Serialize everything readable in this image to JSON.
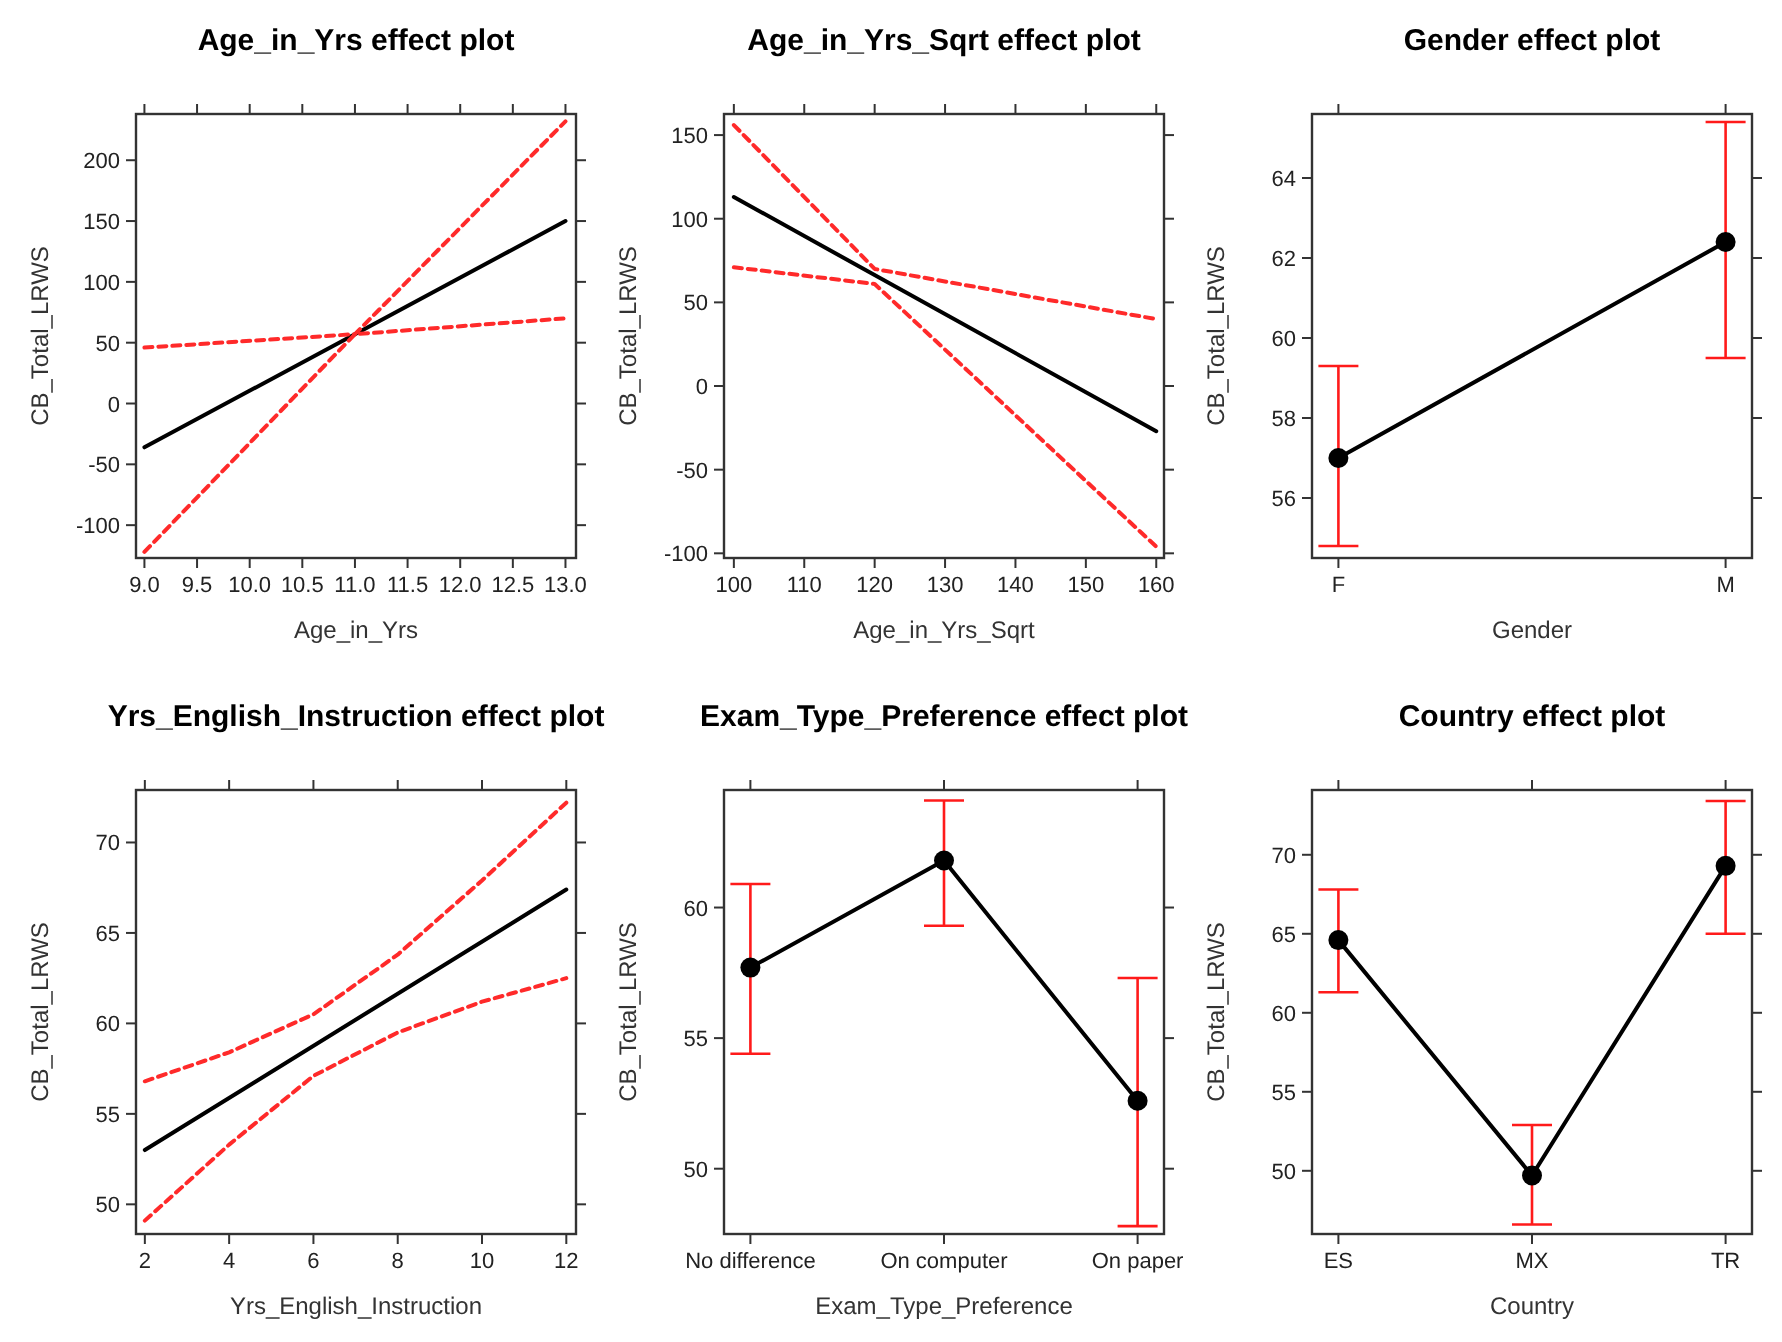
{
  "chart_data": [
    {
      "type": "line",
      "title": "Age_in_Yrs effect plot",
      "xlabel": "Age_in_Yrs",
      "ylabel": "CB_Total_LRWS",
      "xlim": [
        8.92,
        13.1
      ],
      "xticks": [
        {
          "value": 9,
          "label": "9.0"
        },
        9.5,
        {
          "value": 10,
          "label": "10.0"
        },
        10.5,
        {
          "value": 11,
          "label": "11.0"
        },
        11.5,
        {
          "value": 12,
          "label": "12.0"
        },
        12.5,
        {
          "value": 13,
          "label": "13.0"
        }
      ],
      "ylim": [
        -127,
        238
      ],
      "yticks": [
        -100,
        -50,
        0,
        50,
        100,
        150,
        200
      ],
      "grid": false,
      "series": [
        {
          "color": "#000000",
          "line_style": "solid",
          "x": [
            9,
            13
          ],
          "values": [
            -36,
            150
          ]
        },
        {
          "color": "#ff2a2a",
          "line_style": "dashed",
          "x": [
            9,
            11,
            13
          ],
          "values": [
            -122,
            57,
            70
          ]
        },
        {
          "color": "#ff2a2a",
          "line_style": "dashed",
          "x": [
            9,
            11,
            13
          ],
          "values": [
            46,
            57,
            232
          ]
        }
      ]
    },
    {
      "type": "line",
      "title": "Age_in_Yrs_Sqrt effect plot",
      "xlabel": "Age_in_Yrs_Sqrt",
      "ylabel": "CB_Total_LRWS",
      "xlim": [
        98.6,
        161.1
      ],
      "xticks": [
        100,
        110,
        120,
        130,
        140,
        150,
        160
      ],
      "ylim": [
        -102.8,
        162.6
      ],
      "yticks": [
        -100,
        -50,
        0,
        50,
        100,
        150
      ],
      "grid": false,
      "series": [
        {
          "color": "#000000",
          "line_style": "solid",
          "x": [
            100,
            160
          ],
          "values": [
            113,
            -27
          ]
        },
        {
          "color": "#ff2a2a",
          "line_style": "dashed",
          "x": [
            100,
            120,
            160
          ],
          "values": [
            71,
            61,
            -96
          ]
        },
        {
          "color": "#ff2a2a",
          "line_style": "dashed",
          "x": [
            100,
            120,
            160
          ],
          "values": [
            156,
            70,
            40
          ]
        }
      ]
    },
    {
      "type": "line",
      "title": "Gender effect plot",
      "xlabel": "Gender",
      "ylabel": "CB_Total_LRWS",
      "categories": [
        "F",
        "M"
      ],
      "ylim": [
        54.5,
        65.6
      ],
      "yticks": [
        56,
        58,
        60,
        62,
        64
      ],
      "grid": false,
      "marker": "circle",
      "series": [
        {
          "color": "#000000",
          "line_style": "solid",
          "values": [
            57.0,
            62.4
          ],
          "errors": [
            [
              54.8,
              59.3
            ],
            [
              59.5,
              65.4
            ]
          ]
        }
      ]
    },
    {
      "type": "line",
      "title": "Yrs_English_Instruction effect plot",
      "xlabel": "Yrs_English_Instruction",
      "ylabel": "CB_Total_LRWS",
      "xlim": [
        1.79,
        12.23
      ],
      "xticks": [
        2,
        4,
        6,
        8,
        10,
        12
      ],
      "ylim": [
        48.36,
        72.9
      ],
      "yticks": [
        50,
        55,
        60,
        65,
        70
      ],
      "grid": false,
      "series": [
        {
          "color": "#000000",
          "line_style": "solid",
          "x": [
            2,
            12
          ],
          "values": [
            53.0,
            67.4
          ]
        },
        {
          "color": "#ff2a2a",
          "line_style": "dashed",
          "x": [
            2,
            4,
            6,
            8,
            10,
            12
          ],
          "values": [
            49.1,
            53.3,
            57.1,
            59.5,
            61.2,
            62.5
          ]
        },
        {
          "color": "#ff2a2a",
          "line_style": "dashed",
          "x": [
            2,
            4,
            6,
            8,
            10,
            12
          ],
          "values": [
            56.8,
            58.4,
            60.5,
            63.8,
            67.9,
            72.2
          ]
        }
      ]
    },
    {
      "type": "line",
      "title": "Exam_Type_Preference effect plot",
      "xlabel": "Exam_Type_Preference",
      "ylabel": "CB_Total_LRWS",
      "categories": [
        "No difference",
        "On computer",
        "On paper"
      ],
      "ylim": [
        47.5,
        64.5
      ],
      "yticks": [
        50,
        55,
        60
      ],
      "grid": false,
      "marker": "circle",
      "series": [
        {
          "color": "#000000",
          "line_style": "solid",
          "values": [
            57.7,
            61.8,
            52.6
          ],
          "errors": [
            [
              54.4,
              60.9
            ],
            [
              59.3,
              64.1
            ],
            [
              47.8,
              57.3
            ]
          ]
        }
      ]
    },
    {
      "type": "line",
      "title": "Country effect plot",
      "xlabel": "Country",
      "ylabel": "CB_Total_LRWS",
      "categories": [
        "ES",
        "MX",
        "TR"
      ],
      "ylim": [
        46.0,
        74.1
      ],
      "yticks": [
        50,
        55,
        60,
        65,
        70
      ],
      "grid": false,
      "marker": "circle",
      "series": [
        {
          "color": "#000000",
          "line_style": "solid",
          "values": [
            64.6,
            49.7,
            69.3
          ],
          "errors": [
            [
              61.3,
              67.8
            ],
            [
              46.6,
              52.9
            ],
            [
              65.0,
              73.4
            ]
          ]
        }
      ]
    }
  ]
}
